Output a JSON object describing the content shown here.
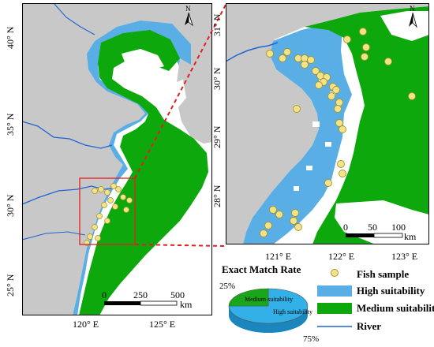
{
  "colors": {
    "land": "#c8c8c8",
    "sea": "#ffffff",
    "high": "#5aaee6",
    "medium": "#0ca80c",
    "river": "#1e64d2",
    "sample_fill": "#f3e38a",
    "sample_stroke": "#a8962a",
    "box": "#e02020",
    "pie_high": "#34b0e8",
    "pie_medium": "#1aa61a"
  },
  "left_map": {
    "lat_labels": [
      "40° N",
      "35° N",
      "30° N",
      "25° N"
    ],
    "lon_labels": [
      "120° E",
      "125° E"
    ],
    "scale_ticks": [
      "0",
      "250",
      "500"
    ],
    "scale_unit": "km",
    "north_label": "N"
  },
  "right_map": {
    "lat_labels": [
      "31° N",
      "30° N",
      "29° N",
      "28° N"
    ],
    "lon_labels": [
      "121° E",
      "122° E",
      "123° E"
    ],
    "scale_ticks": [
      "0",
      "50",
      "100"
    ],
    "scale_unit": "km",
    "north_label": "N"
  },
  "legend": {
    "sample": "Fish sample",
    "high": "High suitability",
    "medium": "Medium suitability",
    "river": "River"
  },
  "pie": {
    "title": "Exact Match Rate",
    "medium_label": "Medium suitability",
    "high_label": "High suitability",
    "medium_pct": "25%",
    "high_pct": "75%",
    "medium_value": 25,
    "high_value": 75
  }
}
